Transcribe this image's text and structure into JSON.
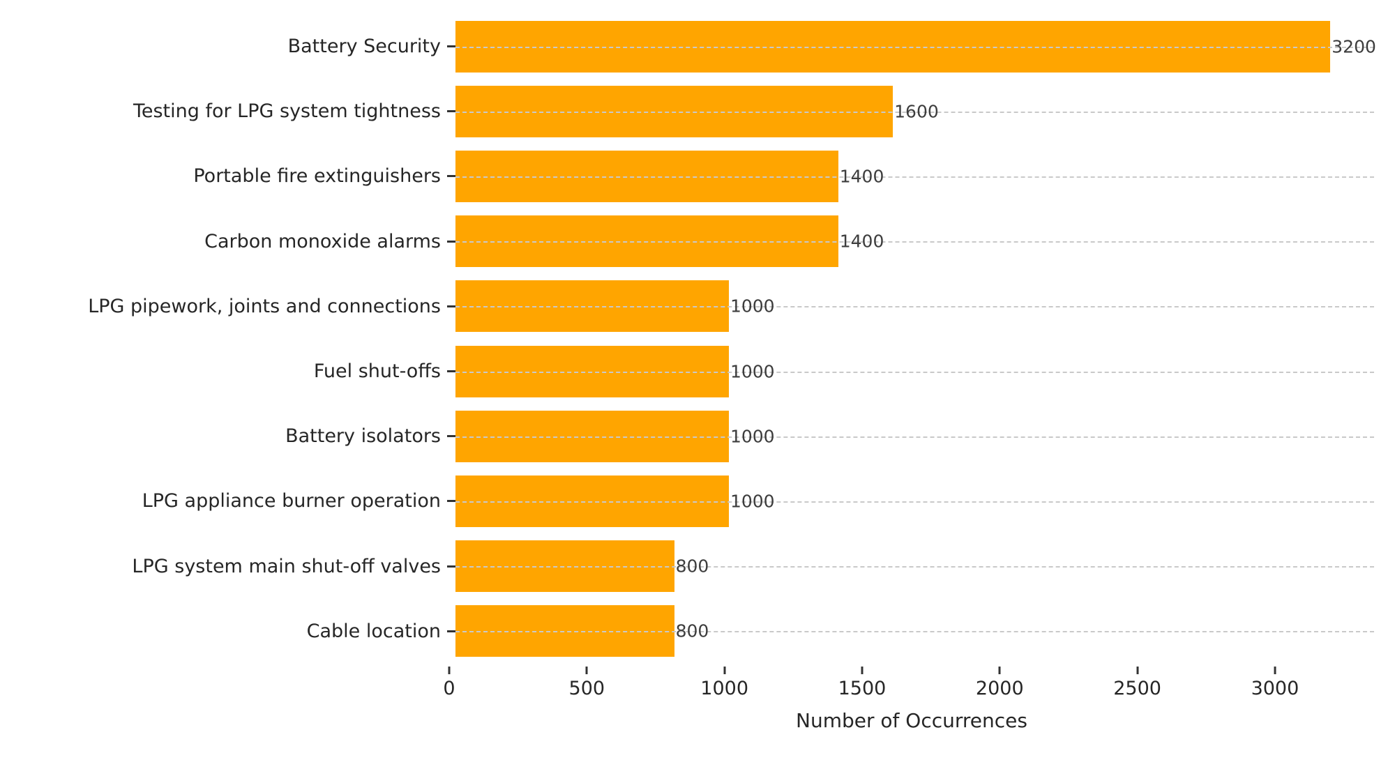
{
  "chart_data": {
    "type": "bar",
    "orientation": "horizontal",
    "title": "",
    "xlabel": "Number of Occurrences",
    "ylabel": "",
    "categories": [
      "Battery Security",
      "Testing for LPG system tightness",
      "Portable fire extinguishers",
      "Carbon monoxide alarms",
      "LPG pipework, joints and connections",
      "Fuel shut-offs",
      "Battery isolators",
      "LPG appliance burner operation",
      "LPG system main shut-off valves",
      "Cable location"
    ],
    "values": [
      3200,
      1600,
      1400,
      1400,
      1000,
      1000,
      1000,
      1000,
      800,
      800
    ],
    "value_labels_shown": true,
    "xticks": [
      0,
      500,
      1000,
      1500,
      2000,
      2500,
      3000
    ],
    "xlim": [
      0,
      3360
    ],
    "grid": "horizontal-dashed",
    "legend": "none",
    "colors": {
      "bar": "#FFA500",
      "gridline": "#c9c9c9",
      "axis_text": "#262626",
      "value_text": "#3d3d3d",
      "tick_mark": "#333333",
      "background": "#ffffff"
    }
  }
}
